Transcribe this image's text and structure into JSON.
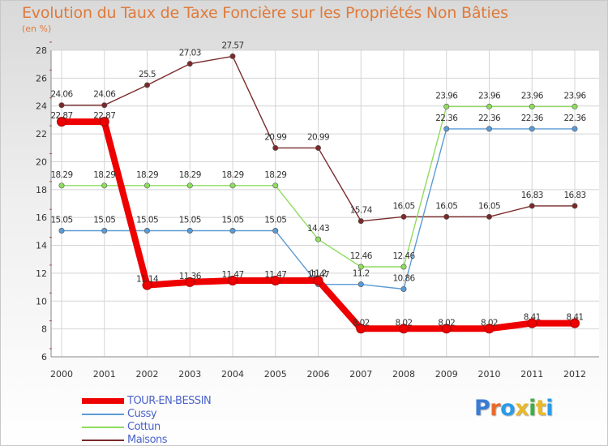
{
  "header": {
    "title": "Evolution du Taux de Taxe Foncière sur les Propriétés Non Bâties",
    "subtitle": "(en %)"
  },
  "brand": {
    "logo_text": "Proxiti"
  },
  "chart_data": {
    "type": "line",
    "title": "Evolution du Taux de Taxe Foncière sur les Propriétés Non Bâties",
    "ylabel": "(en %)",
    "xlabel": "",
    "x": [
      "2000",
      "2001",
      "2002",
      "2003",
      "2004",
      "2005",
      "2006",
      "2007",
      "2008",
      "2009",
      "2010",
      "2011",
      "2012"
    ],
    "ylim": [
      6,
      28
    ],
    "yticks": [
      6,
      8,
      10,
      12,
      14,
      16,
      18,
      20,
      22,
      24,
      26,
      28
    ],
    "grid": true,
    "legend": "bottom-left",
    "series": [
      {
        "name": "TOUR-EN-BESSIN",
        "color": "#ee0000",
        "values": [
          22.87,
          22.87,
          11.14,
          11.36,
          11.47,
          11.47,
          11.47,
          8.02,
          8.02,
          8.02,
          8.02,
          8.41,
          8.41
        ],
        "labels": [
          "22.87",
          "22.87",
          "11.14",
          "11.36",
          "11.47",
          "11.47",
          "11.47",
          "8.02",
          "8.02",
          "8.02",
          "8.02",
          "8.41",
          "8.41"
        ]
      },
      {
        "name": "Cussy",
        "color": "#5b9bd5",
        "values": [
          15.05,
          15.05,
          15.05,
          15.05,
          15.05,
          15.05,
          11.2,
          11.2,
          10.86,
          22.36,
          22.36,
          22.36,
          22.36
        ],
        "labels": [
          "15.05",
          "15.05",
          "15.05",
          "15.05",
          "15.05",
          "15.05",
          "11.2",
          "11.2",
          "10.86",
          "22.36",
          "22.36",
          "22.36",
          "22.36"
        ]
      },
      {
        "name": "Cottun",
        "color": "#8fdc5e",
        "values": [
          18.29,
          18.29,
          18.29,
          18.29,
          18.29,
          18.29,
          14.43,
          12.46,
          12.46,
          23.96,
          23.96,
          23.96,
          23.96
        ],
        "labels": [
          "18.29",
          "18.29",
          "18.29",
          "18.29",
          "18.29",
          "18.29",
          "14.43",
          "12.46",
          "12.46",
          "23.96",
          "23.96",
          "23.96",
          "23.96"
        ]
      },
      {
        "name": "Maisons",
        "color": "#7a2a2a",
        "values": [
          24.06,
          24.06,
          25.5,
          27.03,
          27.57,
          20.99,
          20.99,
          15.74,
          16.05,
          16.05,
          16.05,
          16.83,
          16.83
        ],
        "labels": [
          "24.06",
          "24.06",
          "25.5",
          "27.03",
          "27.57",
          "20.99",
          "20.99",
          "15.74",
          "16.05",
          "16.05",
          "16.05",
          "16.83",
          "16.83"
        ]
      }
    ]
  }
}
